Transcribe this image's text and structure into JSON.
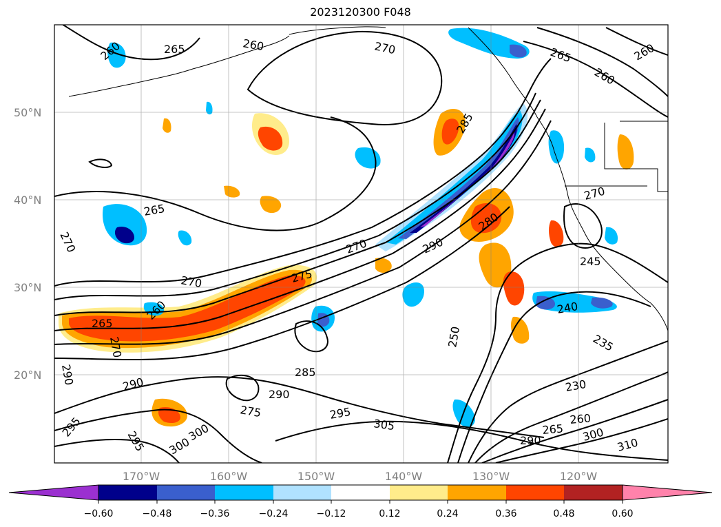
{
  "title": "2023120300 F048",
  "map": {
    "lat_labels": [
      "50°N",
      "40°N",
      "30°N",
      "20°N"
    ],
    "lon_labels": [
      "170°W",
      "160°W",
      "150°W",
      "140°W",
      "130°W",
      "120°W"
    ],
    "contour_labels": [
      "260",
      "265",
      "260",
      "270",
      "265",
      "260",
      "260",
      "265",
      "270",
      "275",
      "265",
      "260",
      "270",
      "270",
      "280",
      "285",
      "290",
      "270",
      "245",
      "240",
      "235",
      "230",
      "250",
      "285",
      "290",
      "295",
      "305",
      "300",
      "290",
      "265",
      "260",
      "300",
      "310",
      "290",
      "295",
      "300",
      "295",
      "275",
      "290",
      "270"
    ]
  },
  "colorbar": {
    "tick_labels": [
      "−0.60",
      "−0.48",
      "−0.36",
      "−0.24",
      "−0.12",
      "0.12",
      "0.24",
      "0.36",
      "0.48",
      "0.60"
    ],
    "colors": [
      "#9b30d0",
      "#00008b",
      "#3a5fcd",
      "#00bfff",
      "#b0e2ff",
      "#ffffff",
      "#ffec8b",
      "#ffa500",
      "#ff4500",
      "#b22222",
      "#ff82ab"
    ]
  }
}
